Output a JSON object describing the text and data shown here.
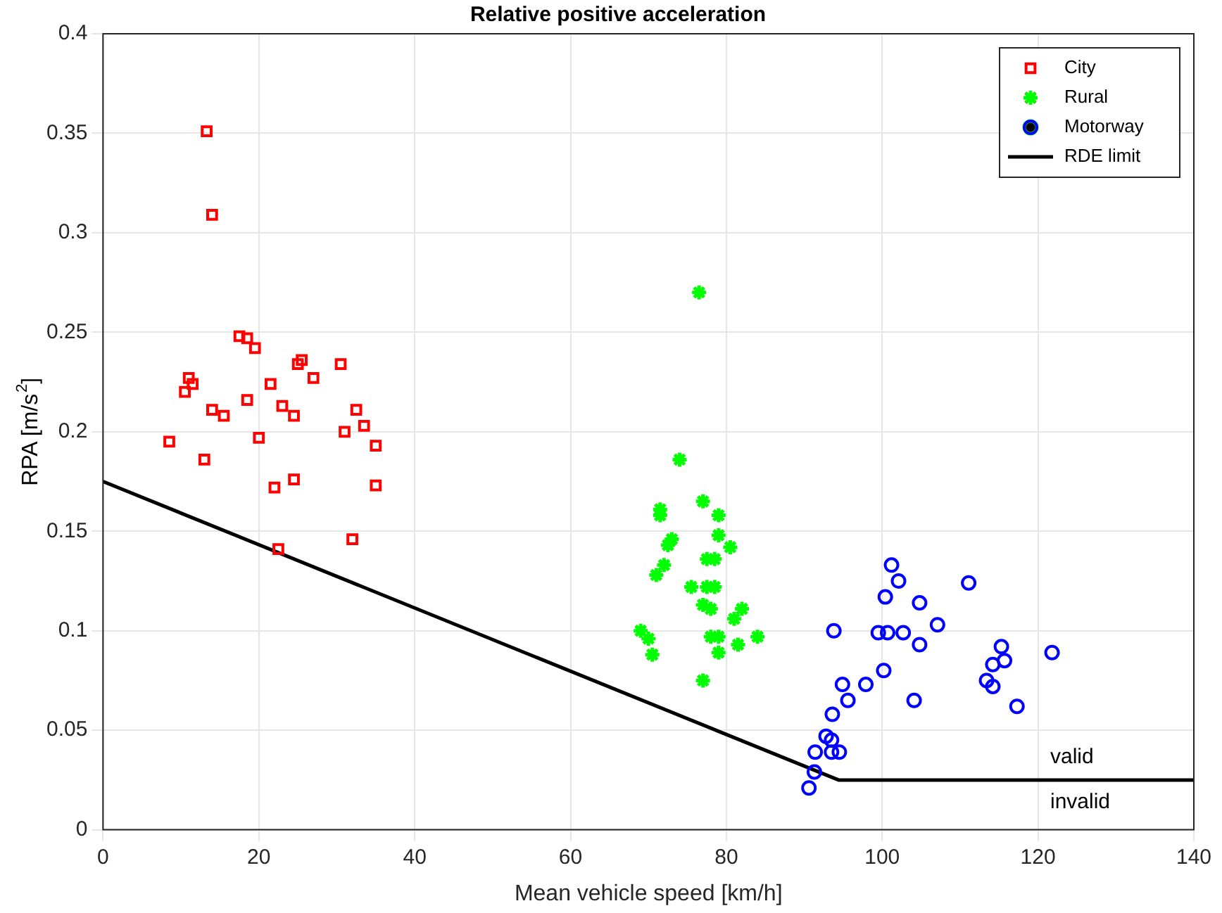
{
  "chart_data": {
    "type": "scatter",
    "title": "Relative positive acceleration",
    "xlabel": "Mean vehicle speed [km/h]",
    "ylabel": "RPA [m/s$^{2}$]",
    "xlim": [
      0,
      140
    ],
    "xticks": [
      0,
      20,
      40,
      60,
      80,
      100,
      120,
      140
    ],
    "ylim": [
      0,
      0.4
    ],
    "yticks": [
      0,
      0.05,
      0.1,
      0.15,
      0.2,
      0.25,
      0.3,
      0.35,
      0.4
    ],
    "grid": true,
    "legend": "top right",
    "series": [
      {
        "name": "City",
        "color": "#ff0000",
        "marker": "square",
        "x": [
          13.3,
          14,
          17.5,
          18.5,
          19.5,
          11,
          11.5,
          10.5,
          21.5,
          25.5,
          25,
          27,
          30.5,
          18.5,
          23,
          15.5,
          14,
          24.5,
          32.5,
          33.5,
          31,
          20,
          8.5,
          35,
          13,
          24.5,
          22,
          35,
          32,
          22.5
        ],
        "values": [
          0.351,
          0.309,
          0.248,
          0.247,
          0.242,
          0.227,
          0.224,
          0.22,
          0.224,
          0.236,
          0.234,
          0.227,
          0.234,
          0.216,
          0.213,
          0.208,
          0.211,
          0.208,
          0.211,
          0.203,
          0.2,
          0.197,
          0.195,
          0.193,
          0.186,
          0.176,
          0.172,
          0.173,
          0.146,
          0.141
        ]
      },
      {
        "name": "Rural",
        "color": "#00ff00",
        "marker": "cross",
        "x": [
          76.5,
          74,
          71.5,
          71.5,
          73,
          72.5,
          77,
          79,
          79,
          80.5,
          77.5,
          78.5,
          72,
          71,
          75.5,
          77.5,
          78.5,
          77,
          78,
          82,
          81,
          69,
          70,
          70.5,
          78,
          79,
          79,
          81.5,
          84,
          77
        ],
        "values": [
          0.27,
          0.186,
          0.161,
          0.158,
          0.146,
          0.143,
          0.165,
          0.158,
          0.148,
          0.142,
          0.136,
          0.136,
          0.133,
          0.128,
          0.122,
          0.122,
          0.122,
          0.113,
          0.111,
          0.111,
          0.106,
          0.1,
          0.096,
          0.088,
          0.097,
          0.097,
          0.089,
          0.093,
          0.097,
          0.075
        ]
      },
      {
        "name": "Motorway",
        "color": "#0000ff",
        "marker": "circle",
        "x": [
          101.2,
          102.1,
          100.4,
          104.8,
          111.1,
          93.8,
          99.5,
          100.7,
          102.7,
          107.1,
          104.8,
          115.3,
          115.7,
          114.2,
          121.8,
          113.4,
          114.2,
          117.3,
          100.2,
          97.9,
          94.9,
          95.6,
          104.1,
          93.6,
          92.8,
          93.5,
          91.4,
          93.5,
          94.5,
          91.3,
          90.6
        ],
        "values": [
          0.133,
          0.125,
          0.117,
          0.114,
          0.124,
          0.1,
          0.099,
          0.099,
          0.099,
          0.103,
          0.093,
          0.092,
          0.085,
          0.083,
          0.089,
          0.075,
          0.072,
          0.062,
          0.08,
          0.073,
          0.073,
          0.065,
          0.065,
          0.058,
          0.047,
          0.045,
          0.039,
          0.039,
          0.039,
          0.029,
          0.021
        ]
      },
      {
        "name": "RDE limit",
        "type": "line",
        "color": "#000000",
        "marker": "none",
        "x": [
          0,
          94.4,
          140
        ],
        "values": [
          0.175,
          0.025,
          0.025
        ]
      }
    ],
    "annotations": [
      "valid",
      "invalid"
    ]
  }
}
